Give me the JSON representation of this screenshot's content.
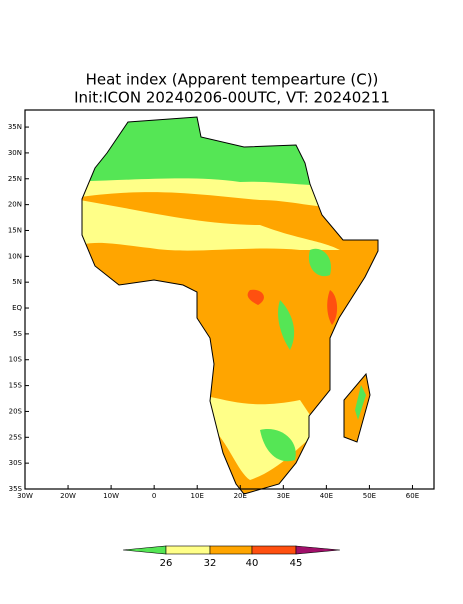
{
  "chart_data": {
    "type": "map",
    "title": "Heat index (Apparent tempearture (C))",
    "subtitle": "Init:ICON 20240206-00UTC, VT: 20240211",
    "xlim": [
      -30,
      65
    ],
    "ylim": [
      -35,
      38.3
    ],
    "xticks": [
      {
        "value": -30,
        "label": "30W"
      },
      {
        "value": -20,
        "label": "20W"
      },
      {
        "value": -10,
        "label": "10W"
      },
      0,
      {
        "value": 10,
        "label": "10E"
      },
      {
        "value": 20,
        "label": "20E"
      },
      {
        "value": 30,
        "label": "30E"
      },
      {
        "value": 40,
        "label": "40E"
      },
      {
        "value": 50,
        "label": "50E"
      },
      {
        "value": 60,
        "label": "60E"
      }
    ],
    "yticks": [
      {
        "value": 35,
        "label": "35N"
      },
      {
        "value": 30,
        "label": "30N"
      },
      {
        "value": 25,
        "label": "25N"
      },
      {
        "value": 20,
        "label": "20N"
      },
      {
        "value": 15,
        "label": "15N"
      },
      {
        "value": 10,
        "label": "10N"
      },
      {
        "value": 5,
        "label": "5N"
      },
      {
        "value": 0,
        "label": "EQ"
      },
      {
        "value": -5,
        "label": "5S"
      },
      {
        "value": -10,
        "label": "10S"
      },
      {
        "value": -15,
        "label": "15S"
      },
      {
        "value": -20,
        "label": "20S"
      },
      {
        "value": -25,
        "label": "25S"
      },
      {
        "value": -30,
        "label": "30S"
      },
      {
        "value": -35,
        "label": "35S"
      }
    ],
    "colorbar": {
      "levels": [
        26,
        32,
        40,
        45
      ],
      "colors": [
        "#55e655",
        "#ffff88",
        "#ffa500",
        "#ff5010",
        "#a0106a"
      ]
    }
  }
}
